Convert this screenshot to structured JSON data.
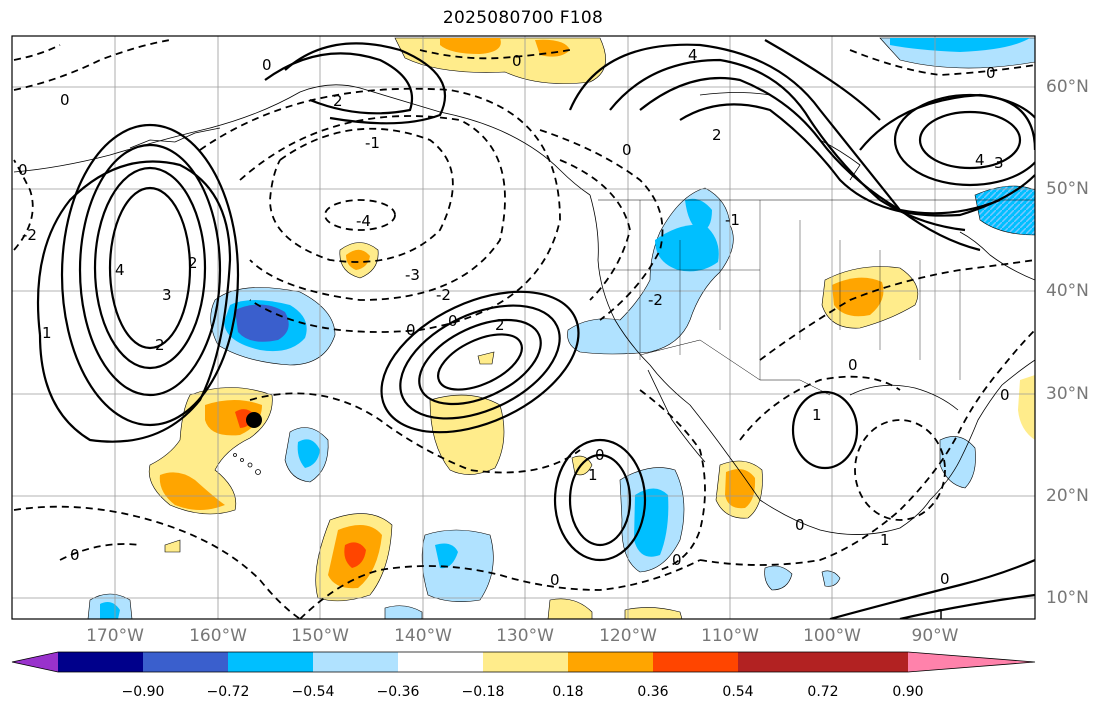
{
  "title": "2025080700 F108",
  "lat_labels": [
    "60°N",
    "50°N",
    "40°N",
    "30°N",
    "20°N",
    "10°N"
  ],
  "lon_labels": [
    "170°W",
    "160°W",
    "150°W",
    "140°W",
    "130°W",
    "120°W",
    "110°W",
    "100°W",
    "90°W"
  ],
  "colorbar": {
    "ticks": [
      "−0.90",
      "−0.72",
      "−0.54",
      "−0.36",
      "−0.18",
      "0.18",
      "0.36",
      "0.54",
      "0.72",
      "0.90"
    ],
    "colors": [
      "#9932cc",
      "#00008b",
      "#3a5fcd",
      "#00bfff",
      "#b0e2ff",
      "#ffffff",
      "#ffec8b",
      "#ffa500",
      "#ff4500",
      "#b22222",
      "#ff82ab"
    ]
  },
  "contour_labels": [
    "0",
    "-1",
    "-2",
    "-3",
    "-4",
    "1",
    "2",
    "3",
    "4"
  ],
  "marker": "black-dot"
}
